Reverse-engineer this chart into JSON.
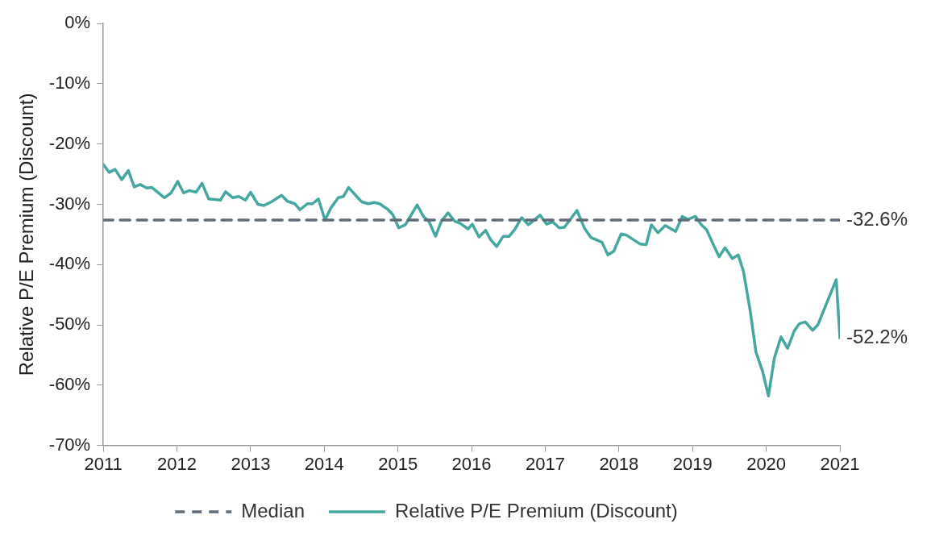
{
  "chart_data": {
    "type": "line",
    "ylabel": "Relative P/E Premium (Discount)",
    "xlim": [
      2011,
      2021
    ],
    "xticks": [
      2011,
      2012,
      2013,
      2014,
      2015,
      2016,
      2017,
      2018,
      2019,
      2020,
      2021
    ],
    "ylim": [
      -70,
      0
    ],
    "yticks": [
      {
        "value": 0,
        "label": "0%"
      },
      {
        "value": -10,
        "label": "-10%"
      },
      {
        "value": -20,
        "label": "-20%"
      },
      {
        "value": -30,
        "label": "-30%"
      },
      {
        "value": -40,
        "label": "-40%"
      },
      {
        "value": -50,
        "label": "-50%"
      },
      {
        "value": -60,
        "label": "-60%"
      },
      {
        "value": -70,
        "label": "-70%"
      }
    ],
    "grid": false,
    "legend": "bottom",
    "marker": "none",
    "series": [
      {
        "name": "Median",
        "color": "#5f6b77",
        "line_style": "dashed",
        "x": [
          2011,
          2021
        ],
        "values": [
          -32.6,
          -32.6
        ]
      },
      {
        "name": "Relative P/E Premium (Discount)",
        "color": "#45a8a0",
        "line_style": "solid",
        "x": [
          2011.0,
          2011.08,
          2011.16,
          2011.25,
          2011.34,
          2011.42,
          2011.5,
          2011.59,
          2011.66,
          2011.83,
          2011.92,
          2012.01,
          2012.09,
          2012.17,
          2012.26,
          2012.34,
          2012.43,
          2012.59,
          2012.66,
          2012.76,
          2012.84,
          2012.93,
          2013.0,
          2013.1,
          2013.18,
          2013.28,
          2013.42,
          2013.5,
          2013.6,
          2013.67,
          2013.77,
          2013.84,
          2013.92,
          2014.01,
          2014.09,
          2014.19,
          2014.26,
          2014.33,
          2014.47,
          2014.51,
          2014.6,
          2014.68,
          2014.75,
          2014.86,
          2014.93,
          2015.01,
          2015.1,
          2015.26,
          2015.35,
          2015.42,
          2015.51,
          2015.59,
          2015.68,
          2015.77,
          2015.85,
          2015.95,
          2016.01,
          2016.1,
          2016.19,
          2016.26,
          2016.34,
          2016.43,
          2016.51,
          2016.59,
          2016.68,
          2016.77,
          2016.93,
          2017.02,
          2017.1,
          2017.19,
          2017.26,
          2017.43,
          2017.53,
          2017.62,
          2017.77,
          2017.85,
          2017.93,
          2018.03,
          2018.1,
          2018.29,
          2018.37,
          2018.44,
          2018.53,
          2018.63,
          2018.77,
          2018.86,
          2018.94,
          2019.04,
          2019.12,
          2019.19,
          2019.29,
          2019.36,
          2019.44,
          2019.54,
          2019.62,
          2019.69,
          2019.78,
          2019.86,
          2019.95,
          2020.03,
          2020.11,
          2020.2,
          2020.29,
          2020.38,
          2020.45,
          2020.53,
          2020.63,
          2020.7,
          2020.95,
          2021.0
        ],
        "values": [
          -23.4,
          -24.7,
          -24.2,
          -25.9,
          -24.4,
          -27.1,
          -26.7,
          -27.3,
          -27.2,
          -28.9,
          -28.1,
          -26.2,
          -28.1,
          -27.7,
          -28.0,
          -26.5,
          -29.1,
          -29.3,
          -27.9,
          -28.9,
          -28.7,
          -29.3,
          -28.0,
          -30.0,
          -30.2,
          -29.6,
          -28.5,
          -29.5,
          -29.9,
          -30.9,
          -29.9,
          -29.9,
          -29.1,
          -32.6,
          -30.6,
          -28.9,
          -28.7,
          -27.2,
          -29.1,
          -29.6,
          -29.9,
          -29.7,
          -29.9,
          -30.8,
          -31.7,
          -33.9,
          -33.4,
          -30.1,
          -32.1,
          -32.8,
          -35.3,
          -32.8,
          -31.4,
          -32.8,
          -33.2,
          -34.1,
          -33.3,
          -35.4,
          -34.3,
          -35.9,
          -37.0,
          -35.3,
          -35.3,
          -34.1,
          -32.2,
          -33.4,
          -31.8,
          -33.3,
          -32.9,
          -33.9,
          -33.8,
          -31.0,
          -33.9,
          -35.5,
          -36.3,
          -38.4,
          -37.8,
          -34.9,
          -35.1,
          -36.6,
          -36.7,
          -33.4,
          -34.7,
          -33.5,
          -34.5,
          -32.0,
          -32.5,
          -32.0,
          -33.4,
          -34.2,
          -36.9,
          -38.7,
          -37.2,
          -39.0,
          -38.4,
          -41.1,
          -47.5,
          -54.5,
          -57.7,
          -61.8,
          -55.5,
          -52.0,
          -53.9,
          -51.0,
          -49.8,
          -49.5,
          -50.9,
          -50.0,
          -42.5,
          -52.2
        ]
      }
    ],
    "annotations": [
      {
        "text": "-32.6%",
        "x": 2021,
        "y": -32.6
      },
      {
        "text": "-52.2%",
        "x": 2021,
        "y": -52.2
      }
    ]
  }
}
